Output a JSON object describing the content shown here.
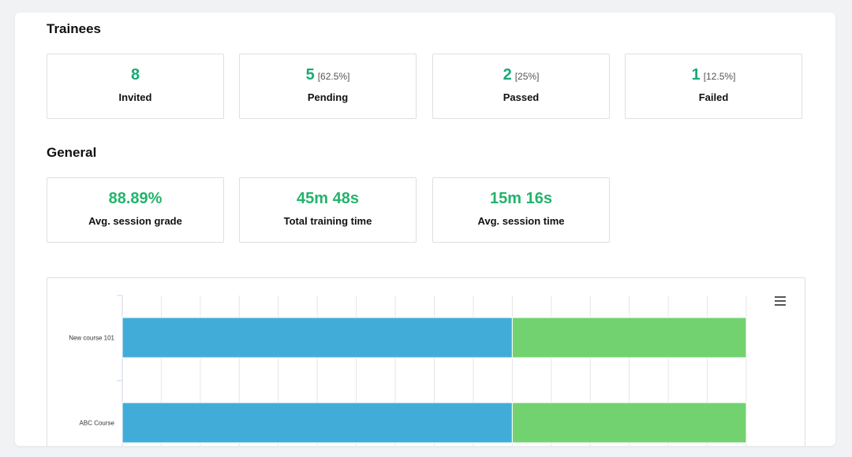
{
  "trainees": {
    "title": "Trainees",
    "cards": [
      {
        "value": "8",
        "pct": "",
        "label": "Invited"
      },
      {
        "value": "5",
        "pct": "[62.5%]",
        "label": "Pending"
      },
      {
        "value": "2",
        "pct": "[25%]",
        "label": "Passed"
      },
      {
        "value": "1",
        "pct": "[12.5%]",
        "label": "Failed"
      }
    ]
  },
  "general": {
    "title": "General",
    "cards": [
      {
        "value": "88.89%",
        "label": "Avg. session grade"
      },
      {
        "value": "45m 48s",
        "label": "Total training time"
      },
      {
        "value": "15m 16s",
        "label": "Avg. session time"
      }
    ]
  },
  "chart_data": {
    "type": "bar",
    "orientation": "horizontal",
    "stacked": true,
    "categories": [
      "New course 101",
      "ABC Course"
    ],
    "series": [
      {
        "values": [
          10,
          10
        ],
        "color": "#42acd8"
      },
      {
        "values": [
          6,
          6
        ],
        "color": "#72d26f"
      }
    ],
    "xlim": [
      0,
      16
    ],
    "grid": true,
    "menu_icon": "hamburger-menu-icon"
  },
  "colors": {
    "accent": "#19a974",
    "bar_blue": "#42acd8",
    "bar_green": "#72d26f"
  }
}
